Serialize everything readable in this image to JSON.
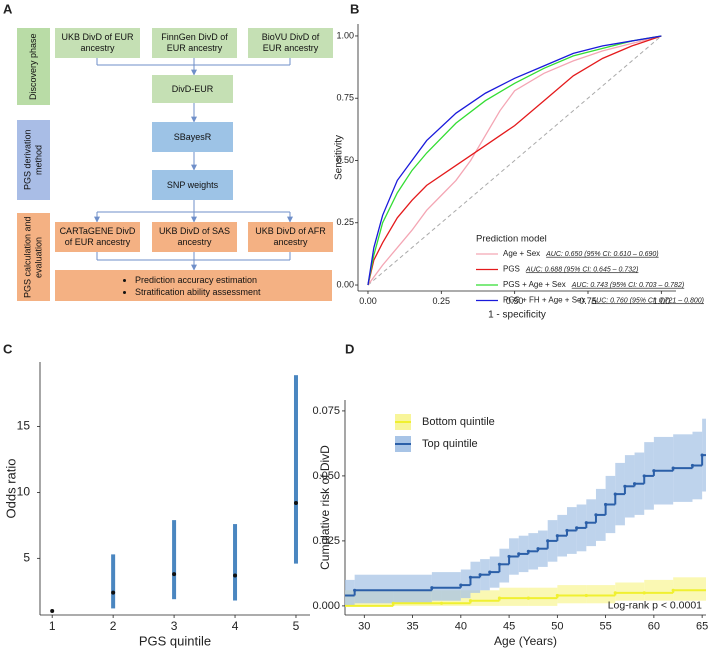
{
  "diagram": {
    "panel": "A",
    "phases": [
      "Discovery phase",
      "PGS derivation method",
      "PGS calculation and evaluation"
    ],
    "nodes": [
      {
        "label": "UKB DivD of EUR ancestry"
      },
      {
        "label": "FinnGen DivD of EUR ancestry"
      },
      {
        "label": "BioVU DivD of EUR ancestry"
      },
      {
        "label": "DivD-EUR"
      },
      {
        "label": "SBayesR"
      },
      {
        "label": "SNP weights"
      },
      {
        "label": "CARTaGENE DivD of EUR ancestry"
      },
      {
        "label": "UKB DivD of SAS ancestry"
      },
      {
        "label": "UKB DivD of AFR ancestry"
      }
    ],
    "bullets": [
      "Prediction accuracy estimation",
      "Stratification ability assessment"
    ]
  },
  "chart_data": [
    {
      "type": "line",
      "panel": "B",
      "xlabel": "1 - specificity",
      "ylabel": "Sensitivity",
      "legend_title": "Prediction model",
      "xlim": [
        -0.034,
        1.05
      ],
      "ylim": [
        -0.024,
        1.048
      ],
      "xticks": [
        {
          "value": 0,
          "label": "0.00"
        },
        {
          "value": 0.25,
          "label": "0.25"
        },
        {
          "value": 0.5,
          "label": "0.50"
        },
        {
          "value": 0.75,
          "label": "0.75"
        },
        {
          "value": 1,
          "label": "1.00"
        }
      ],
      "yticks": [
        {
          "value": 0,
          "label": "0.00"
        },
        {
          "value": 0.25,
          "label": "0.25"
        },
        {
          "value": 0.5,
          "label": "0.50"
        },
        {
          "value": 0.75,
          "label": "0.75"
        },
        {
          "value": 1,
          "label": "1.00"
        }
      ],
      "series": [
        {
          "name": "Age + Sex",
          "color": "#f4a6b4",
          "auc_label": "AUC: 0.650 (95% CI: 0.610 – 0.690)",
          "x": [
            0,
            0.05,
            0.1,
            0.15,
            0.2,
            0.25,
            0.3,
            0.35,
            0.4,
            0.45,
            0.5,
            0.6,
            0.7,
            0.8,
            0.9,
            1
          ],
          "values": [
            0,
            0.08,
            0.15,
            0.22,
            0.3,
            0.36,
            0.42,
            0.5,
            0.6,
            0.7,
            0.78,
            0.85,
            0.9,
            0.94,
            0.97,
            1
          ]
        },
        {
          "name": "PGS",
          "color": "#e41a1c",
          "auc_label": "AUC: 0.688 (95% CI: 0.645 – 0.732)",
          "x": [
            0,
            0.02,
            0.05,
            0.1,
            0.15,
            0.2,
            0.3,
            0.4,
            0.5,
            0.6,
            0.7,
            0.8,
            0.9,
            1
          ],
          "values": [
            0,
            0.1,
            0.17,
            0.27,
            0.34,
            0.4,
            0.48,
            0.56,
            0.64,
            0.74,
            0.84,
            0.91,
            0.96,
            1
          ]
        },
        {
          "name": "PGS + Age + Sex",
          "color": "#33dd33",
          "auc_label": "AUC: 0.743 (95% CI: 0.703 – 0.782)",
          "x": [
            0,
            0.02,
            0.05,
            0.1,
            0.15,
            0.2,
            0.3,
            0.4,
            0.5,
            0.6,
            0.7,
            0.8,
            0.9,
            1
          ],
          "values": [
            0,
            0.12,
            0.25,
            0.37,
            0.46,
            0.53,
            0.65,
            0.74,
            0.81,
            0.87,
            0.92,
            0.95,
            0.98,
            1
          ]
        },
        {
          "name": "PGS + FH + Age + Sex",
          "color": "#1a1adb",
          "auc_label": "AUC: 0.760 (95% CI: 0.721 – 0.800)",
          "x": [
            0,
            0.02,
            0.05,
            0.1,
            0.15,
            0.2,
            0.3,
            0.4,
            0.5,
            0.6,
            0.7,
            0.8,
            0.9,
            1
          ],
          "values": [
            0,
            0.15,
            0.28,
            0.42,
            0.5,
            0.58,
            0.69,
            0.77,
            0.83,
            0.88,
            0.93,
            0.96,
            0.98,
            1
          ]
        }
      ]
    },
    {
      "type": "errorbar",
      "panel": "C",
      "xlabel": "PGS quintile",
      "ylabel": "Odds ratio",
      "xlim": [
        0.8,
        5.23
      ],
      "ylim": [
        0.7,
        19.9
      ],
      "xticks": [
        1,
        2,
        3,
        4,
        5
      ],
      "yticks": [
        5,
        10,
        15
      ],
      "x": [
        1,
        2,
        3,
        4,
        5
      ],
      "values": [
        1,
        2.4,
        3.8,
        3.7,
        9.2
      ],
      "ci_lower": [
        null,
        1.2,
        1.9,
        1.8,
        4.6
      ],
      "ci_upper": [
        null,
        5.3,
        7.9,
        7.6,
        18.9
      ],
      "color": "#4a86c0"
    },
    {
      "type": "step",
      "panel": "D",
      "xlabel": "Age (Years)",
      "ylabel": "Cumulative risk of DivD",
      "annotation": "Log-rank p < 0.0001",
      "xlim": [
        28,
        65.4
      ],
      "ylim": [
        -0.0035,
        0.0792
      ],
      "xticks": [
        30,
        35,
        40,
        45,
        50,
        55,
        60,
        65
      ],
      "yticks": [
        {
          "value": 0,
          "label": "0.000"
        },
        {
          "value": 0.025,
          "label": "0.025"
        },
        {
          "value": 0.05,
          "label": "0.050"
        },
        {
          "value": 0.075,
          "label": "0.075"
        }
      ],
      "series": [
        {
          "name": "Bottom quintile",
          "color": "#f0f030",
          "band_color": "#f8f59a",
          "x": [
            28,
            33,
            38,
            41,
            44,
            47,
            50,
            53,
            56,
            59,
            62
          ],
          "values": [
            0,
            0.001,
            0.001,
            0.002,
            0.003,
            0.003,
            0.004,
            0.004,
            0.005,
            0.005,
            0.006
          ],
          "lower": [
            0,
            0,
            0,
            0,
            0,
            0,
            0.001,
            0.001,
            0.002,
            0.002,
            0.002
          ],
          "upper": [
            0.006,
            0.006,
            0.006,
            0.006,
            0.007,
            0.007,
            0.008,
            0.008,
            0.009,
            0.01,
            0.011
          ]
        },
        {
          "name": "Top quintile",
          "color": "#2b5fa8",
          "band_color": "#a8c4e6",
          "x": [
            28,
            29,
            37,
            40,
            41,
            42,
            43,
            44,
            45,
            46,
            47,
            48,
            49,
            50,
            51,
            52,
            53,
            54,
            55,
            56,
            57,
            58,
            59,
            60,
            62,
            64,
            65
          ],
          "values": [
            0.004,
            0.006,
            0.007,
            0.008,
            0.011,
            0.012,
            0.013,
            0.016,
            0.019,
            0.02,
            0.021,
            0.022,
            0.025,
            0.027,
            0.029,
            0.03,
            0.032,
            0.035,
            0.039,
            0.043,
            0.046,
            0.047,
            0.05,
            0.052,
            0.053,
            0.054,
            0.058
          ],
          "lower": [
            0,
            0.001,
            0.002,
            0.003,
            0.005,
            0.006,
            0.007,
            0.009,
            0.012,
            0.013,
            0.014,
            0.015,
            0.017,
            0.019,
            0.02,
            0.021,
            0.023,
            0.025,
            0.028,
            0.031,
            0.034,
            0.035,
            0.037,
            0.039,
            0.04,
            0.041,
            0.044
          ],
          "upper": [
            0.01,
            0.012,
            0.013,
            0.014,
            0.017,
            0.018,
            0.019,
            0.022,
            0.026,
            0.027,
            0.028,
            0.029,
            0.033,
            0.035,
            0.038,
            0.039,
            0.041,
            0.045,
            0.05,
            0.055,
            0.058,
            0.059,
            0.063,
            0.065,
            0.066,
            0.067,
            0.072
          ]
        }
      ]
    }
  ]
}
